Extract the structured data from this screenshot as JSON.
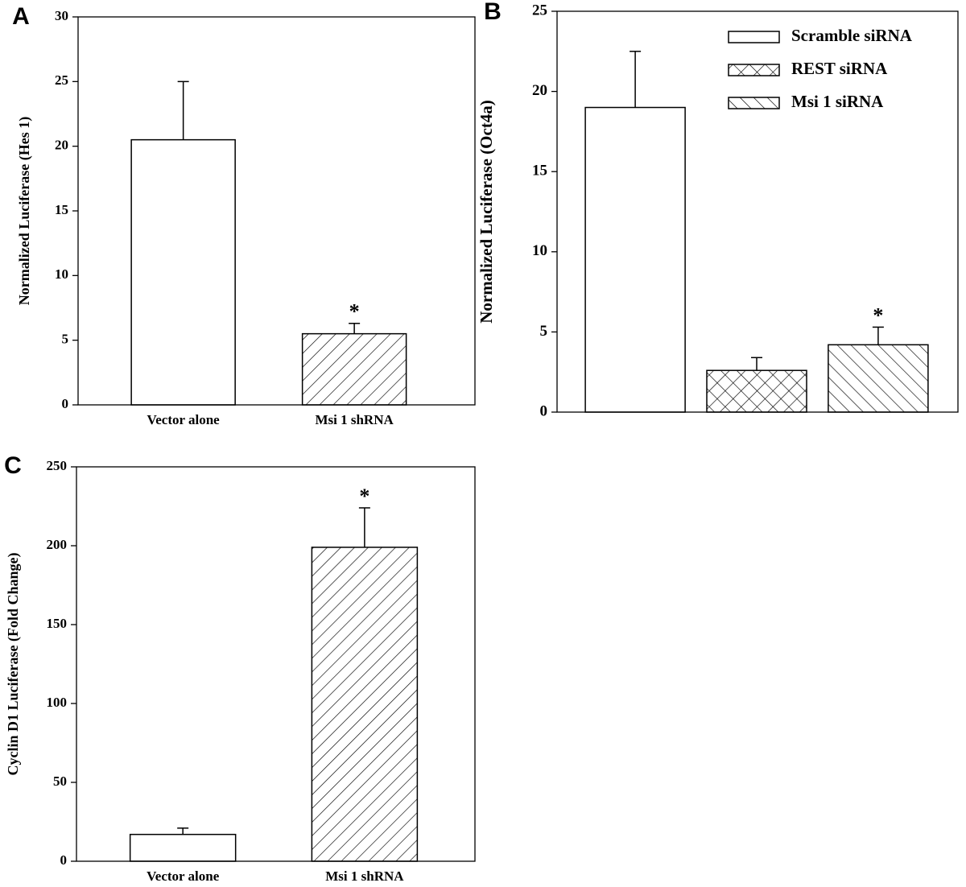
{
  "chart_data": [
    {
      "type": "bar",
      "panel": "A",
      "y_label": "Normalized Luciferase (Hes 1)",
      "categories": [
        "Vector alone",
        "Msi 1 shRNA"
      ],
      "values": [
        20.5,
        5.5
      ],
      "errors": [
        4.5,
        0.8
      ],
      "patterns": [
        "none",
        "backslash"
      ],
      "color": "#000000",
      "ylim": [
        0,
        30
      ],
      "yticks": [
        0,
        5,
        10,
        15,
        20,
        25,
        30
      ],
      "annotations": [
        {
          "text": "*",
          "category": "Msi 1 shRNA"
        }
      ]
    },
    {
      "type": "bar",
      "panel": "B",
      "y_label": "Normalized Luciferase (Oct4a)",
      "categories": [
        null
      ],
      "series": [
        {
          "name": "Scramble siRNA",
          "pattern": "none",
          "values": [
            19
          ],
          "errors": [
            3.5
          ]
        },
        {
          "name": "REST siRNA",
          "pattern": "cross",
          "values": [
            2.6
          ],
          "errors": [
            0.8
          ]
        },
        {
          "name": "Msi 1 siRNA",
          "pattern": "slash",
          "values": [
            4.2
          ],
          "errors": [
            1.1
          ]
        }
      ],
      "color": "#000000",
      "legend": "upper right",
      "ylim": [
        0,
        25
      ],
      "yticks": [
        0,
        5,
        10,
        15,
        20,
        25
      ],
      "annotations": [
        {
          "text": "*",
          "series": "Msi 1 siRNA"
        }
      ]
    },
    {
      "type": "bar",
      "panel": "C",
      "y_label": "Cyclin D1 Luciferase (Fold Change)",
      "categories": [
        "Vector alone",
        "Msi 1 shRNA"
      ],
      "values": [
        17,
        199
      ],
      "errors": [
        4,
        25
      ],
      "patterns": [
        "none",
        "backslash"
      ],
      "color": "#000000",
      "ylim": [
        0,
        250
      ],
      "yticks": [
        0,
        50,
        100,
        150,
        200,
        250
      ],
      "annotations": [
        {
          "text": "*",
          "category": "Msi 1 shRNA"
        }
      ]
    }
  ]
}
